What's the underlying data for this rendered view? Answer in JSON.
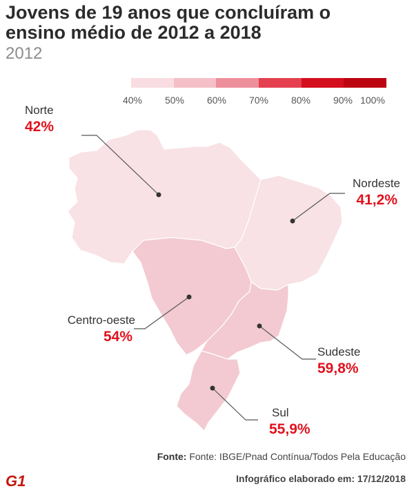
{
  "title": "Jovens de 19 anos que concluíram o ensino médio de 2012 a 2018",
  "subtitle": "2012",
  "legend": {
    "ticks": [
      "40%",
      "50%",
      "60%",
      "70%",
      "80%",
      "90%",
      "100%"
    ],
    "colors": [
      "#f9dde2",
      "#f5bfc7",
      "#ee8f9c",
      "#e4404f",
      "#d40e1c",
      "#bd0511",
      "#8c0a10"
    ]
  },
  "regions": [
    {
      "name": "Norte",
      "value": "42%",
      "color": "#f8e2e6"
    },
    {
      "name": "Nordeste",
      "value": "41,2%",
      "color": "#f8e2e6"
    },
    {
      "name": "Centro-oeste",
      "value": "54%",
      "color": "#f3cad1"
    },
    {
      "name": "Sudeste",
      "value": "59,8%",
      "color": "#f3cad1"
    },
    {
      "name": "Sul",
      "value": "55,9%",
      "color": "#f3cad1"
    }
  ],
  "footer": {
    "source_label": "Fonte:",
    "source_text": "Fonte: IBGE/Pnad Contínua/Todos Pela Educação",
    "credit": "Infográfico elaborado em: 17/12/2018",
    "logo": "G1"
  }
}
